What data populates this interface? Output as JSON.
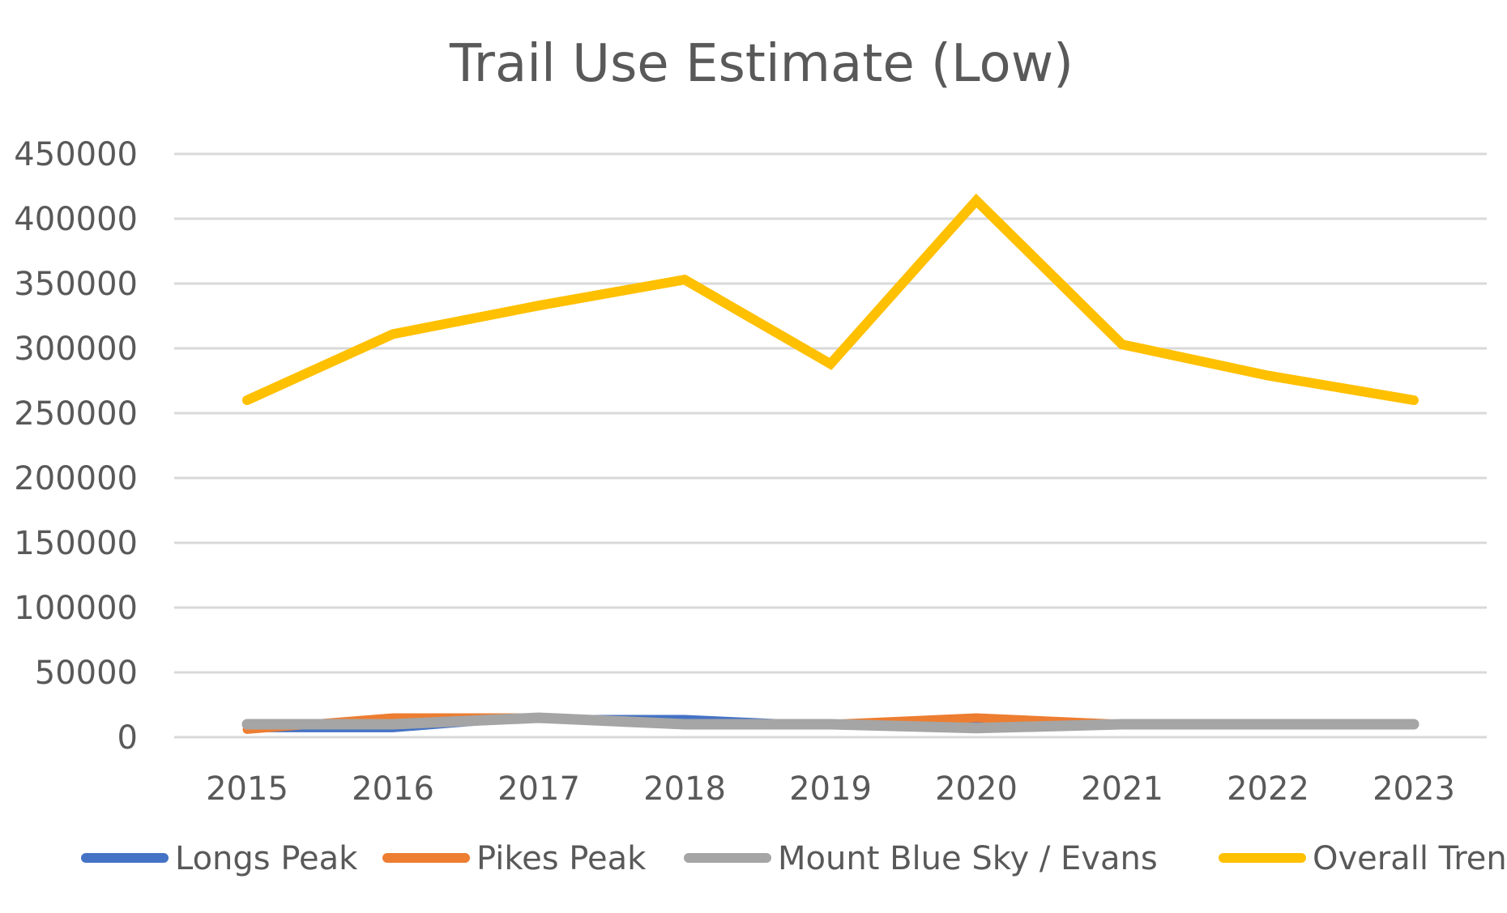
{
  "chart_data": {
    "type": "line",
    "title": "Trail Use Estimate (Low)",
    "xlabel": "",
    "ylabel": "",
    "ylim": [
      0,
      450000
    ],
    "yticks": [
      0,
      50000,
      100000,
      150000,
      200000,
      250000,
      300000,
      350000,
      400000,
      450000
    ],
    "categories": [
      "2015",
      "2016",
      "2017",
      "2018",
      "2019",
      "2020",
      "2021",
      "2022",
      "2023"
    ],
    "grid": true,
    "legend_position": "bottom",
    "series": [
      {
        "name": "Longs Peak",
        "color": "#4472C4",
        "values": [
          6000,
          6000,
          15000,
          15000,
          10000,
          10000,
          10000,
          10000,
          10000
        ]
      },
      {
        "name": "Pikes Peak",
        "color": "#ED7D31",
        "values": [
          6000,
          15000,
          15000,
          10000,
          10000,
          15000,
          10000,
          10000,
          10000
        ]
      },
      {
        "name": "Mount Blue Sky / Evans",
        "color": "#A5A5A5",
        "values": [
          10000,
          10000,
          15000,
          10000,
          10000,
          7000,
          10000,
          10000,
          10000
        ]
      },
      {
        "name": "Overall Trend",
        "color": "#FFC000",
        "values": [
          260000,
          311000,
          333000,
          353000,
          288000,
          414000,
          303000,
          279000,
          260000
        ]
      }
    ]
  }
}
